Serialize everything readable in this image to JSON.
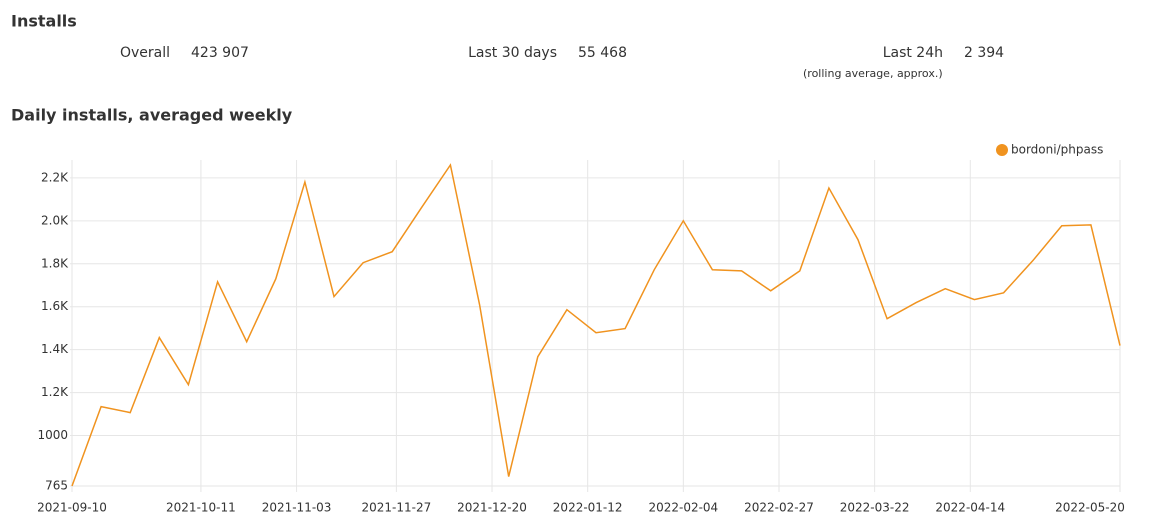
{
  "installs": {
    "title": "Installs",
    "stats": [
      {
        "label": "Overall",
        "value": "423 907"
      },
      {
        "label": "Last 30 days",
        "value": "55 468"
      },
      {
        "label": "Last 24h",
        "value": "2 394",
        "note": "(rolling average, approx.)"
      }
    ]
  },
  "chart_data": {
    "type": "line",
    "title": "Daily installs, averaged weekly",
    "x": [
      "2021-09-10",
      "2021-09-17",
      "2021-09-24",
      "2021-10-01",
      "2021-10-08",
      "2021-10-15",
      "2021-10-22",
      "2021-10-29",
      "2021-11-05",
      "2021-11-12",
      "2021-11-19",
      "2021-11-26",
      "2021-12-03",
      "2021-12-10",
      "2021-12-17",
      "2021-12-24",
      "2021-12-31",
      "2022-01-07",
      "2022-01-14",
      "2022-01-21",
      "2022-01-28",
      "2022-02-04",
      "2022-02-11",
      "2022-02-18",
      "2022-02-25",
      "2022-03-04",
      "2022-03-11",
      "2022-03-18",
      "2022-03-25",
      "2022-04-01",
      "2022-04-08",
      "2022-04-15",
      "2022-04-22",
      "2022-04-29",
      "2022-05-06",
      "2022-05-13",
      "2022-05-20"
    ],
    "series": [
      {
        "name": "bordoni/phpass",
        "color": "#f0931f",
        "values": [
          765,
          1135,
          1107,
          1456,
          1237,
          1716,
          1437,
          1730,
          2181,
          1647,
          1805,
          1856,
          2060,
          2260,
          1609,
          809,
          1367,
          1586,
          1479,
          1498,
          1772,
          2000,
          1772,
          1767,
          1674,
          1767,
          2153,
          1912,
          1544,
          1619,
          1684,
          1633,
          1665,
          1814,
          1977,
          1981,
          1419
        ]
      }
    ],
    "xlim": [
      "2021-09-10",
      "2022-05-20"
    ],
    "xticks": [
      "2021-09-10",
      "2021-10-11",
      "2021-11-03",
      "2021-11-27",
      "2021-12-20",
      "2022-01-12",
      "2022-02-04",
      "2022-02-27",
      "2022-03-22",
      "2022-04-14",
      "2022-05-20"
    ],
    "ylim": [
      765,
      2260
    ],
    "yticks": [
      765,
      1000,
      {
        "value": 1200,
        "label": "1.2K"
      },
      {
        "value": 1400,
        "label": "1.4K"
      },
      {
        "value": 1600,
        "label": "1.6K"
      },
      {
        "value": 1800,
        "label": "1.8K"
      },
      {
        "value": 2000,
        "label": "2.0K"
      },
      {
        "value": 2200,
        "label": "2.2K"
      }
    ],
    "grid": true,
    "legend": "top-right"
  }
}
